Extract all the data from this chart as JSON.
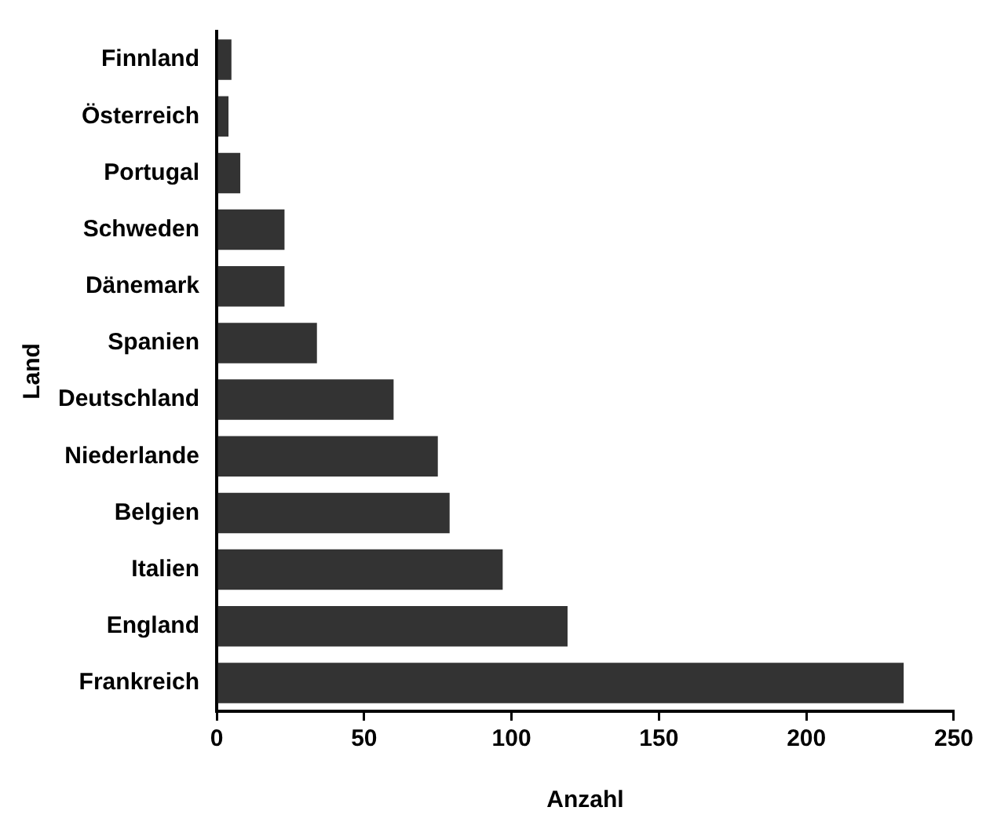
{
  "chart_data": {
    "type": "bar",
    "orientation": "horizontal",
    "xlabel": "Anzahl",
    "ylabel": "Land",
    "categories": [
      "Finnland",
      "Österreich",
      "Portugal",
      "Schweden",
      "Dänemark",
      "Spanien",
      "Deutschland",
      "Niederlande",
      "Belgien",
      "Italien",
      "England",
      "Frankreich"
    ],
    "values": [
      5,
      4,
      8,
      23,
      23,
      34,
      60,
      75,
      79,
      97,
      119,
      233
    ],
    "color": "#333333",
    "xlim": [
      0,
      250
    ],
    "xticks": [
      0,
      50,
      100,
      150,
      200,
      250
    ],
    "grid": false,
    "legend": false
  }
}
